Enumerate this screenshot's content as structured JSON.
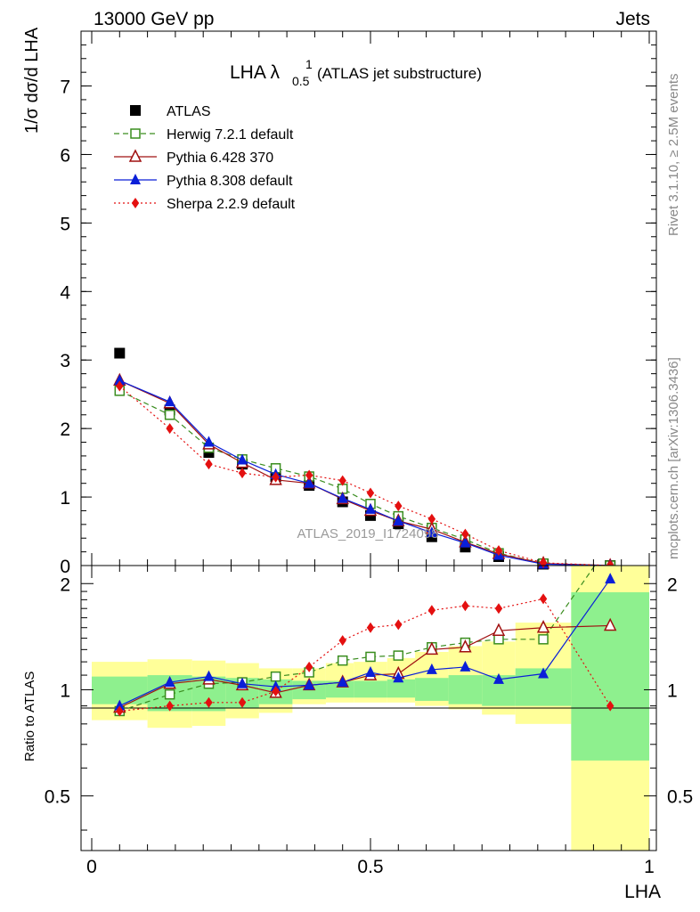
{
  "header": {
    "left": "13000 GeV pp",
    "right": "Jets"
  },
  "side_labels": {
    "rivet": "Rivet 3.1.10, ≥ 2.5M events",
    "mcplots": "mcplots.cern.ch [arXiv:1306.3436]"
  },
  "chart_data": [
    {
      "type": "line",
      "title_main": "LHA λ",
      "title_sup": "1",
      "title_sub": "0.5",
      "title_rest": "(ATLAS jet substructure)",
      "ylabel": "1/σ dσ/d LHA",
      "watermark": "ATLAS_2019_I1724098",
      "xlim": [
        0,
        1
      ],
      "ylim": [
        0,
        7.8
      ],
      "yticks": [
        0,
        1,
        2,
        3,
        4,
        5,
        6,
        7
      ],
      "legend_position": "top-left",
      "series": [
        {
          "name": "ATLAS",
          "color": "#000000",
          "marker": "square-filled",
          "line": "none",
          "x": [
            0.05,
            0.14,
            0.21,
            0.27,
            0.33,
            0.39,
            0.45,
            0.5,
            0.55,
            0.61,
            0.67,
            0.73,
            0.81,
            0.93
          ],
          "y": [
            3.1,
            2.27,
            1.65,
            1.48,
            1.3,
            1.17,
            0.93,
            0.73,
            0.61,
            0.42,
            0.27,
            0.13,
            0.02,
            0.0
          ]
        },
        {
          "name": "Herwig 7.2.1 default",
          "color": "#3a8d1f",
          "marker": "square-open",
          "line": "dashed",
          "x": [
            0.05,
            0.14,
            0.21,
            0.27,
            0.33,
            0.39,
            0.45,
            0.5,
            0.55,
            0.61,
            0.67,
            0.73,
            0.81,
            0.93
          ],
          "y": [
            2.55,
            2.2,
            1.72,
            1.55,
            1.42,
            1.3,
            1.12,
            0.9,
            0.72,
            0.55,
            0.38,
            0.18,
            0.03,
            0.0
          ]
        },
        {
          "name": "Pythia 6.428 370",
          "color": "#a01010",
          "marker": "triangle-open",
          "line": "solid",
          "x": [
            0.05,
            0.14,
            0.21,
            0.27,
            0.33,
            0.39,
            0.45,
            0.5,
            0.55,
            0.61,
            0.67,
            0.73,
            0.81,
            0.93
          ],
          "y": [
            2.7,
            2.37,
            1.77,
            1.5,
            1.25,
            1.2,
            0.97,
            0.8,
            0.65,
            0.53,
            0.34,
            0.17,
            0.03,
            0.0
          ]
        },
        {
          "name": "Pythia 8.308 default",
          "color": "#0a1fd8",
          "marker": "triangle-filled",
          "line": "solid",
          "x": [
            0.05,
            0.14,
            0.21,
            0.27,
            0.33,
            0.39,
            0.45,
            0.5,
            0.55,
            0.61,
            0.67,
            0.73,
            0.81,
            0.93
          ],
          "y": [
            2.7,
            2.39,
            1.8,
            1.54,
            1.33,
            1.2,
            0.98,
            0.82,
            0.65,
            0.48,
            0.33,
            0.15,
            0.02,
            0.0
          ]
        },
        {
          "name": "Sherpa 2.2.9 default",
          "color": "#e41010",
          "marker": "diamond-filled",
          "line": "dotted",
          "x": [
            0.05,
            0.14,
            0.21,
            0.27,
            0.33,
            0.39,
            0.45,
            0.5,
            0.55,
            0.61,
            0.67,
            0.73,
            0.81,
            0.93
          ],
          "y": [
            2.62,
            2.0,
            1.48,
            1.35,
            1.29,
            1.32,
            1.24,
            1.06,
            0.87,
            0.68,
            0.46,
            0.22,
            0.04,
            0.0
          ]
        }
      ]
    },
    {
      "type": "line",
      "ylabel": "Ratio to ATLAS",
      "xlabel": "LHA",
      "xlim": [
        0,
        1
      ],
      "ylim": [
        0.35,
        2.25
      ],
      "yticks": [
        0.5,
        1,
        2
      ],
      "xticks": [
        0,
        0.5,
        1
      ],
      "reference_line": 1,
      "uncertainty_bands": {
        "bins": [
          [
            0.0,
            0.1
          ],
          [
            0.1,
            0.18
          ],
          [
            0.18,
            0.24
          ],
          [
            0.24,
            0.3
          ],
          [
            0.3,
            0.36
          ],
          [
            0.36,
            0.42
          ],
          [
            0.42,
            0.47
          ],
          [
            0.47,
            0.53
          ],
          [
            0.53,
            0.58
          ],
          [
            0.58,
            0.64
          ],
          [
            0.64,
            0.7
          ],
          [
            0.7,
            0.76
          ],
          [
            0.76,
            0.86
          ],
          [
            0.86,
            1.0
          ]
        ],
        "inner_color": "#8ef08e",
        "outer_color": "#ffff99",
        "inner": [
          [
            0.91,
            1.09
          ],
          [
            0.87,
            1.1
          ],
          [
            0.87,
            1.09
          ],
          [
            0.89,
            1.08
          ],
          [
            0.91,
            1.07
          ],
          [
            0.94,
            1.06
          ],
          [
            0.95,
            1.06
          ],
          [
            0.95,
            1.06
          ],
          [
            0.95,
            1.07
          ],
          [
            0.93,
            1.08
          ],
          [
            0.91,
            1.1
          ],
          [
            0.9,
            1.1
          ],
          [
            0.9,
            1.15
          ],
          [
            0.63,
            1.89
          ]
        ],
        "outer": [
          [
            0.82,
            1.2
          ],
          [
            0.78,
            1.22
          ],
          [
            0.79,
            1.21
          ],
          [
            0.83,
            1.19
          ],
          [
            0.86,
            1.15
          ],
          [
            0.91,
            1.15
          ],
          [
            0.92,
            1.19
          ],
          [
            0.92,
            1.2
          ],
          [
            0.92,
            1.23
          ],
          [
            0.9,
            1.28
          ],
          [
            0.88,
            1.33
          ],
          [
            0.85,
            1.37
          ],
          [
            0.8,
            1.55
          ],
          [
            0.35,
            2.25
          ]
        ]
      },
      "series": [
        {
          "name": "Herwig 7.2.1 default",
          "x": [
            0.05,
            0.14,
            0.21,
            0.27,
            0.33,
            0.39,
            0.45,
            0.5,
            0.55,
            0.61,
            0.67,
            0.73,
            0.81,
            0.93
          ],
          "y": [
            0.87,
            0.97,
            1.04,
            1.05,
            1.09,
            1.12,
            1.21,
            1.24,
            1.25,
            1.32,
            1.36,
            1.39,
            1.39,
            2.6
          ]
        },
        {
          "name": "Pythia 6.428 370",
          "x": [
            0.05,
            0.14,
            0.21,
            0.27,
            0.33,
            0.39,
            0.45,
            0.5,
            0.55,
            0.61,
            0.67,
            0.73,
            0.81,
            0.93
          ],
          "y": [
            0.89,
            1.04,
            1.07,
            1.03,
            0.98,
            1.03,
            1.05,
            1.1,
            1.11,
            1.3,
            1.32,
            1.47,
            1.5,
            1.52
          ]
        },
        {
          "name": "Pythia 8.308 default",
          "x": [
            0.05,
            0.14,
            0.21,
            0.27,
            0.33,
            0.39,
            0.45,
            0.5,
            0.55,
            0.61,
            0.67,
            0.73,
            0.81,
            0.93
          ],
          "y": [
            0.9,
            1.05,
            1.09,
            1.04,
            1.02,
            1.03,
            1.05,
            1.12,
            1.08,
            1.14,
            1.16,
            1.07,
            1.11,
            2.06
          ]
        },
        {
          "name": "Sherpa 2.2.9 default",
          "x": [
            0.05,
            0.14,
            0.21,
            0.27,
            0.33,
            0.39,
            0.45,
            0.5,
            0.55,
            0.61,
            0.67,
            0.73,
            0.81,
            0.93
          ],
          "y": [
            0.87,
            0.9,
            0.92,
            0.92,
            0.99,
            1.16,
            1.38,
            1.5,
            1.53,
            1.68,
            1.73,
            1.7,
            1.81,
            0.9
          ]
        }
      ]
    }
  ]
}
